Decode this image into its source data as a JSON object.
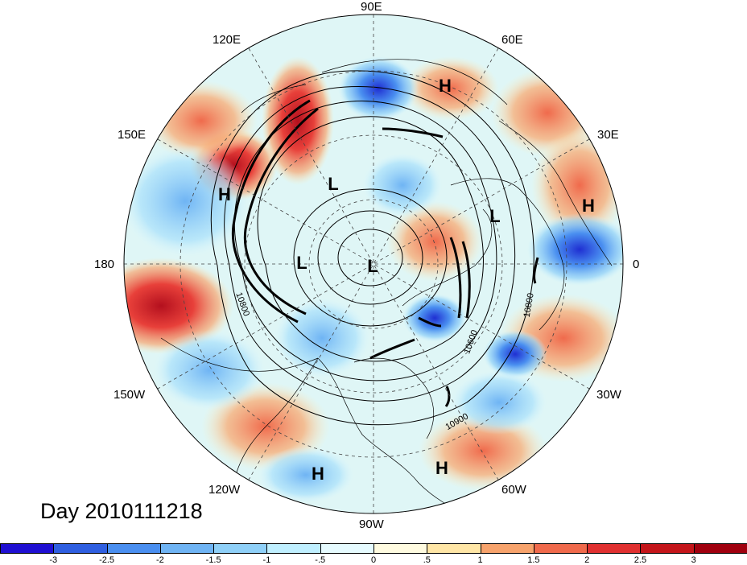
{
  "title": "Day 2010111218",
  "longitude_labels": [
    {
      "key": "90E",
      "text": "90E"
    },
    {
      "key": "60E",
      "text": "60E"
    },
    {
      "key": "120E",
      "text": "120E"
    },
    {
      "key": "30E",
      "text": "30E"
    },
    {
      "key": "150E",
      "text": "150E"
    },
    {
      "key": "0",
      "text": "0"
    },
    {
      "key": "180",
      "text": "180"
    },
    {
      "key": "30W",
      "text": "30W"
    },
    {
      "key": "150W",
      "text": "150W"
    },
    {
      "key": "60W",
      "text": "60W"
    },
    {
      "key": "120W",
      "text": "120W"
    },
    {
      "key": "90W",
      "text": "90W"
    }
  ],
  "pressure_markers": [
    {
      "type": "H",
      "text": "H"
    },
    {
      "type": "H",
      "text": "H"
    },
    {
      "type": "H",
      "text": "H"
    },
    {
      "type": "H",
      "text": "H"
    },
    {
      "type": "H",
      "text": "H"
    },
    {
      "type": "L",
      "text": "L"
    },
    {
      "type": "L",
      "text": "L"
    },
    {
      "type": "L",
      "text": "L"
    },
    {
      "type": "L",
      "text": "L"
    }
  ],
  "contour_labels": [
    "10800",
    "10600",
    "10800",
    "10900"
  ],
  "colorbar": {
    "ticks": [
      "-3",
      "-2.5",
      "-2",
      "-1.5",
      "-1",
      "-.5",
      "0",
      ".5",
      "1",
      "1.5",
      "2",
      "2.5",
      "3"
    ],
    "colors": [
      "#1f0fd2",
      "#2f5fe0",
      "#4a8ff0",
      "#6fb4f4",
      "#8fd0f8",
      "#bfefff",
      "#e6fbff",
      "#fffbe0",
      "#ffe6a6",
      "#f7a36c",
      "#f06a4c",
      "#e03030",
      "#c4151a",
      "#a0000e"
    ]
  },
  "colors": {
    "land_outline": "#000000",
    "contour": "#000000",
    "grid": "#444444"
  }
}
